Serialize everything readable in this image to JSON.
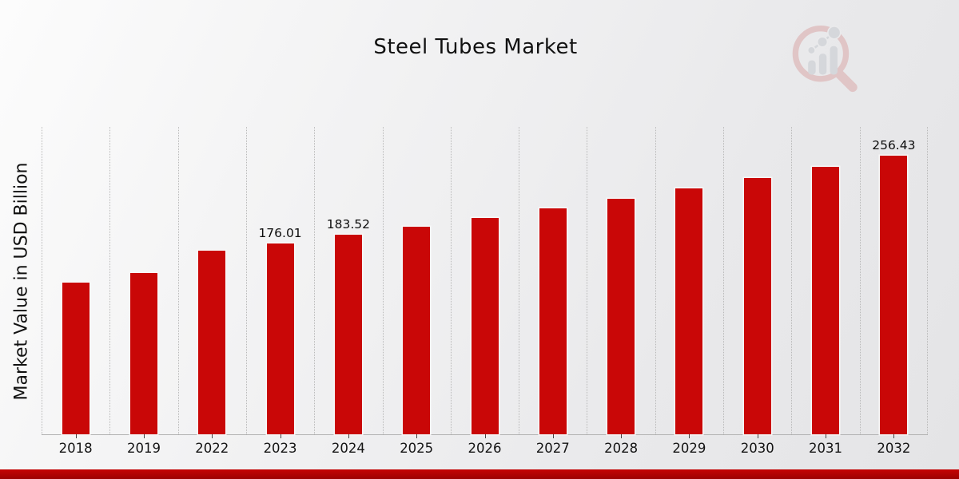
{
  "header": {
    "title": "Steel Tubes Market",
    "watermark_icon": "magnifier-growth-chart-icon"
  },
  "chart_data": {
    "type": "bar",
    "title": "Steel Tubes Market",
    "xlabel": "",
    "ylabel": "Market Value in USD Billion",
    "categories": [
      "2018",
      "2019",
      "2022",
      "2023",
      "2024",
      "2025",
      "2026",
      "2027",
      "2028",
      "2029",
      "2030",
      "2031",
      "2032"
    ],
    "values": [
      139.5,
      148.3,
      169.4,
      176.01,
      183.52,
      191.35,
      199.52,
      208.04,
      216.92,
      226.18,
      235.84,
      245.91,
      256.43
    ],
    "bar_labels": [
      "",
      "",
      "",
      "176.01",
      "183.52",
      "",
      "",
      "",
      "",
      "",
      "",
      "",
      "256.43"
    ],
    "ylim": [
      0,
      283
    ],
    "grid": "vertical-dotted",
    "legend": "none",
    "bar_color": "#c90707",
    "label_color": "#0d0d0d"
  },
  "footer": {
    "accent_color": "#b00404"
  }
}
